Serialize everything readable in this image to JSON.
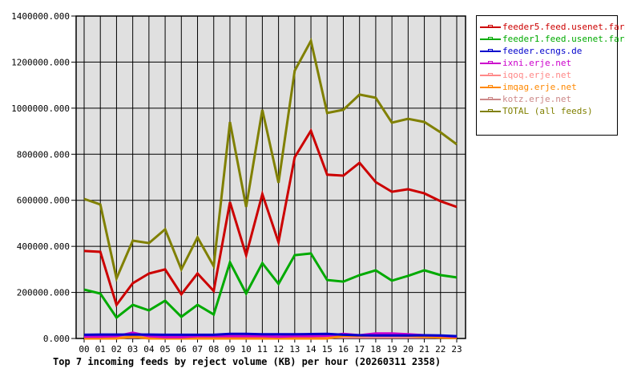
{
  "chart_data": {
    "type": "line",
    "title": "Top 7 incoming feeds by reject volume (KB) per hour (20260311 2358)",
    "xlabel": "",
    "ylabel": "",
    "ylim": [
      0,
      1400000
    ],
    "grid": true,
    "legend_position": "right",
    "y_ticks": [
      "0.000",
      "200000.000",
      "400000.000",
      "600000.000",
      "800000.000",
      "1000000.000",
      "1200000.000",
      "1400000.000"
    ],
    "y_tick_values": [
      0,
      200000,
      400000,
      600000,
      800000,
      1000000,
      1200000,
      1400000
    ],
    "categories": [
      "00",
      "01",
      "02",
      "03",
      "04",
      "05",
      "06",
      "07",
      "08",
      "09",
      "10",
      "11",
      "12",
      "13",
      "14",
      "15",
      "16",
      "17",
      "18",
      "19",
      "20",
      "21",
      "22",
      "23"
    ],
    "series": [
      {
        "name": "feeder5.feed.usenet.farm",
        "color": "#cc0000",
        "values": [
          380000,
          376000,
          146000,
          240000,
          282000,
          300000,
          192000,
          282000,
          206000,
          592000,
          362000,
          627000,
          418000,
          787000,
          902000,
          711000,
          707000,
          763000,
          679000,
          637000,
          648000,
          630000,
          596000,
          571000
        ]
      },
      {
        "name": "feeder1.feed.usenet.farm",
        "color": "#00aa00",
        "values": [
          212000,
          195000,
          91000,
          146000,
          122000,
          164000,
          94000,
          146000,
          104000,
          331000,
          195000,
          327000,
          237000,
          362000,
          369000,
          254000,
          247000,
          275000,
          296000,
          251000,
          272000,
          296000,
          275000,
          265000
        ]
      },
      {
        "name": "feeder.ecngs.de",
        "color": "#0000cc",
        "values": [
          16000,
          17000,
          17000,
          17000,
          17000,
          16000,
          16000,
          16000,
          16000,
          20000,
          20000,
          18000,
          18000,
          18000,
          19000,
          20000,
          16000,
          14000,
          13000,
          13000,
          13000,
          14000,
          13000,
          10000
        ]
      },
      {
        "name": "ixni.erje.net",
        "color": "#cc00cc",
        "values": [
          8000,
          8000,
          10000,
          25000,
          10000,
          6000,
          6000,
          10000,
          10000,
          10000,
          10000,
          10000,
          8000,
          10000,
          10000,
          12000,
          20000,
          14000,
          22000,
          22000,
          18000,
          14000,
          12000,
          8000
        ]
      },
      {
        "name": "iqoq.erje.net",
        "color": "#ff8888",
        "values": [
          5000,
          5000,
          5000,
          5000,
          5000,
          5000,
          5000,
          5000,
          5000,
          5000,
          5000,
          5000,
          5000,
          5000,
          5000,
          5000,
          5000,
          5000,
          5000,
          5000,
          5000,
          5000,
          5000,
          5000
        ]
      },
      {
        "name": "imqag.erje.net",
        "color": "#ff8800",
        "values": [
          0,
          0,
          0,
          8000,
          0,
          0,
          0,
          0,
          0,
          0,
          0,
          0,
          0,
          0,
          0,
          0,
          12000,
          12000,
          16000,
          16000,
          12000,
          8000,
          4000,
          2000
        ]
      },
      {
        "name": "kotz.erje.net",
        "color": "#cc8888",
        "values": [
          8000,
          8000,
          8000,
          8000,
          8000,
          8000,
          8000,
          8000,
          8000,
          8000,
          8000,
          8000,
          8000,
          8000,
          8000,
          8000,
          8000,
          8000,
          8000,
          8000,
          8000,
          8000,
          8000,
          8000
        ]
      },
      {
        "name": "TOTAL (all feeds)",
        "color": "#808000",
        "values": [
          606000,
          582000,
          261000,
          425000,
          414000,
          474000,
          300000,
          439000,
          314000,
          940000,
          571000,
          993000,
          676000,
          1163000,
          1292000,
          979000,
          993000,
          1059000,
          1045000,
          937000,
          954000,
          940000,
          895000,
          843000
        ]
      }
    ]
  },
  "caption": "Top 7 incoming feeds by reject volume (KB) per hour (20260311 2358)",
  "colors": {
    "plot_background": "#e0e0e0",
    "grid": "#000000",
    "page_background": "#ffffff"
  }
}
